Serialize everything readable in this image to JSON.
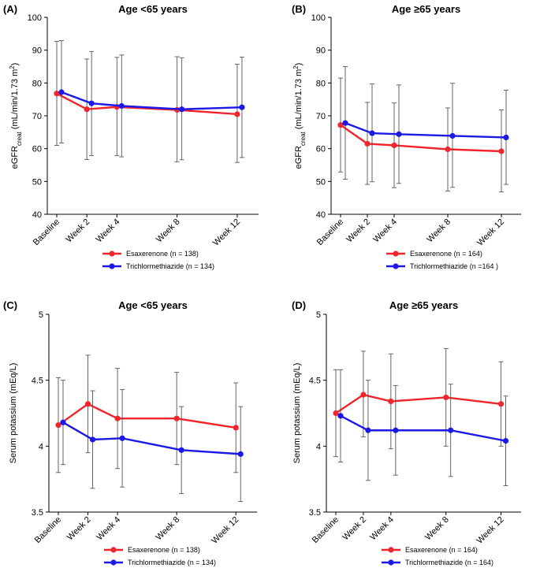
{
  "colors": {
    "red": "#f0262c",
    "blue": "#1c18e6",
    "errorbar": "#555555"
  },
  "chart_data": [
    {
      "type": "line",
      "panel_label": "(A)",
      "title": "Age <65 years",
      "ylabel_main": "eGFR",
      "ylabel_sub": "creat",
      "ylabel_rest": " (mL/min/1.73 m",
      "ylabel_sup": "2",
      "ylabel_end": ")",
      "ylim": [
        40,
        100
      ],
      "yticks": [
        "40",
        "50",
        "60",
        "70",
        "80",
        "90",
        "100"
      ],
      "categories": [
        "Baseline",
        "Week 2",
        "Week 4",
        "Week 8",
        "Week 12"
      ],
      "x": [
        0,
        2,
        4,
        8,
        12
      ],
      "series": [
        {
          "name": "Esaxerenone",
          "n_label": "(n = 138)",
          "color": "red",
          "values": [
            76.8,
            72.0,
            72.7,
            71.8,
            70.5
          ],
          "err_lo": [
            61.0,
            56.7,
            57.9,
            56.0,
            55.8
          ],
          "err_hi": [
            92.7,
            87.3,
            87.8,
            88.0,
            85.7
          ]
        },
        {
          "name": "Trichlormethiazide",
          "n_label": "(n = 134)",
          "color": "blue",
          "values": [
            77.2,
            73.8,
            73.0,
            72.0,
            72.6
          ],
          "err_lo": [
            61.7,
            57.9,
            57.5,
            56.6,
            57.3
          ],
          "err_hi": [
            92.9,
            89.6,
            88.5,
            87.7,
            87.9
          ]
        }
      ]
    },
    {
      "type": "line",
      "panel_label": "(B)",
      "title": "Age ≥65 years",
      "ylabel_main": "eGFR",
      "ylabel_sub": "creat",
      "ylabel_rest": " (mL/min/1.73 m",
      "ylabel_sup": "2",
      "ylabel_end": ")",
      "ylim": [
        40,
        100
      ],
      "yticks": [
        "40",
        "50",
        "60",
        "70",
        "80",
        "90",
        "100"
      ],
      "categories": [
        "Baseline",
        "Week 2",
        "Week 4",
        "Week 8",
        "Week 12"
      ],
      "x": [
        0,
        2,
        4,
        8,
        12
      ],
      "series": [
        {
          "name": "Esaxerenone",
          "n_label": "(n = 164)",
          "color": "red",
          "values": [
            67.2,
            61.5,
            61.0,
            59.8,
            59.2
          ],
          "err_lo": [
            52.9,
            49.1,
            48.1,
            47.1,
            46.8
          ],
          "err_hi": [
            81.5,
            74.1,
            73.9,
            72.4,
            71.8
          ]
        },
        {
          "name": "Trichlormethiazide",
          "n_label": "(n =164 )",
          "color": "blue",
          "values": [
            67.8,
            64.7,
            64.4,
            63.9,
            63.4
          ],
          "err_lo": [
            50.7,
            49.9,
            49.4,
            48.2,
            49.1
          ],
          "err_hi": [
            85.0,
            79.7,
            79.4,
            79.9,
            77.8
          ]
        }
      ]
    },
    {
      "type": "line",
      "panel_label": "(C)",
      "title": "Age <65 years",
      "ylabel_main": "Serum potassium (mEq/L)",
      "ylabel_sub": "",
      "ylabel_rest": "",
      "ylabel_sup": "",
      "ylabel_end": "",
      "ylim": [
        3.5,
        5
      ],
      "yticks": [
        "3.5",
        "4",
        "4.5",
        "5"
      ],
      "categories": [
        "Baseline",
        "Week 2",
        "Week 4",
        "Week 8",
        "Week 12"
      ],
      "x": [
        0,
        2,
        4,
        8,
        12
      ],
      "series": [
        {
          "name": "Esaxerenone",
          "n_label": "(n = 138)",
          "color": "red",
          "values": [
            4.16,
            4.32,
            4.21,
            4.21,
            4.14
          ],
          "err_lo": [
            3.8,
            3.95,
            3.83,
            3.86,
            3.8
          ],
          "err_hi": [
            4.52,
            4.69,
            4.59,
            4.56,
            4.48
          ]
        },
        {
          "name": "Trichlormethiazide",
          "n_label": "(n = 134)",
          "color": "blue",
          "values": [
            4.18,
            4.05,
            4.06,
            3.97,
            3.94
          ],
          "err_lo": [
            3.86,
            3.68,
            3.69,
            3.64,
            3.58
          ],
          "err_hi": [
            4.5,
            4.42,
            4.43,
            4.3,
            4.3
          ]
        }
      ]
    },
    {
      "type": "line",
      "panel_label": "(D)",
      "title": "Age ≥65 years",
      "ylabel_main": "Serum potassium (mEq/L)",
      "ylabel_sub": "",
      "ylabel_rest": "",
      "ylabel_sup": "",
      "ylabel_end": "",
      "ylim": [
        3.5,
        5
      ],
      "yticks": [
        "3.5",
        "4",
        "4.5",
        "5"
      ],
      "categories": [
        "Baseline",
        "Week 2",
        "Week 4",
        "Week 8",
        "Week 12"
      ],
      "x": [
        0,
        2,
        4,
        8,
        12
      ],
      "series": [
        {
          "name": "Esaxerenone",
          "n_label": "(n = 164)",
          "color": "red",
          "values": [
            4.25,
            4.39,
            4.34,
            4.37,
            4.32
          ],
          "err_lo": [
            3.92,
            4.07,
            3.98,
            4.0,
            4.0
          ],
          "err_hi": [
            4.58,
            4.72,
            4.7,
            4.74,
            4.64
          ]
        },
        {
          "name": "Trichlormethiazide",
          "n_label": "(n = 164)",
          "color": "blue",
          "values": [
            4.23,
            4.12,
            4.12,
            4.12,
            4.04
          ],
          "err_lo": [
            3.88,
            3.74,
            3.78,
            3.77,
            3.7
          ],
          "err_hi": [
            4.58,
            4.5,
            4.46,
            4.47,
            4.38
          ]
        }
      ]
    }
  ]
}
